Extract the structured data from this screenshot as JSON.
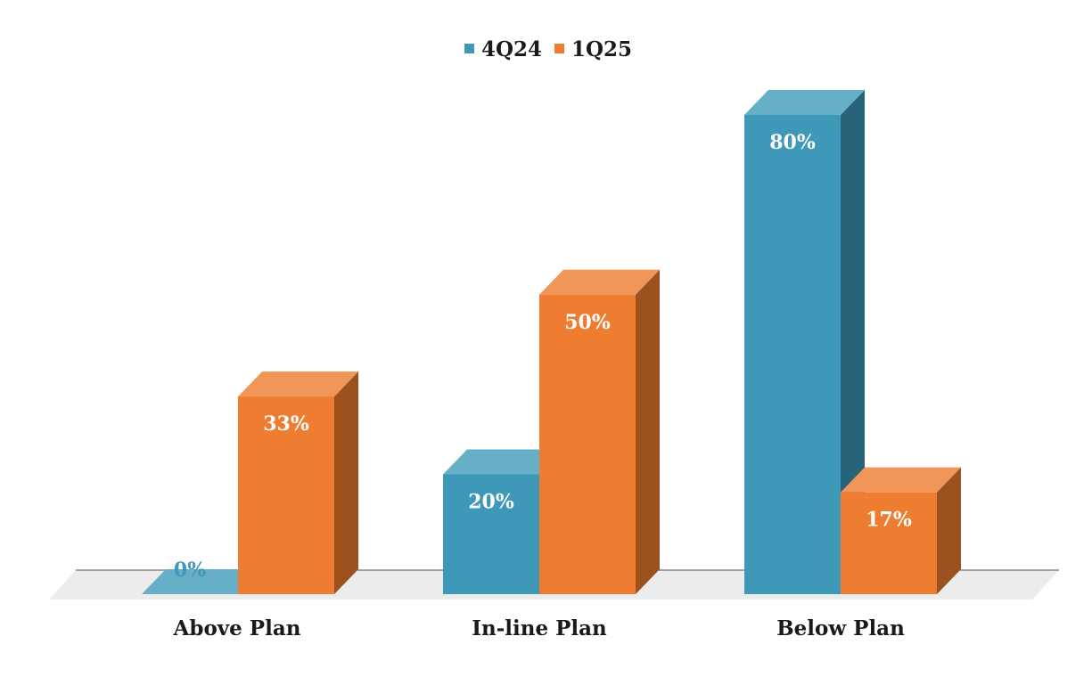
{
  "chart_data": {
    "type": "bar",
    "style": "3d-clustered-column",
    "categories": [
      "Above Plan",
      "In-line Plan",
      "Below Plan"
    ],
    "series": [
      {
        "name": "4Q24",
        "values": [
          0,
          20,
          80
        ],
        "labels": [
          "0%",
          "20%",
          "80%"
        ],
        "color": "#3e98b8",
        "top_color": "#66afc7",
        "side_color": "#276379"
      },
      {
        "name": "1Q25",
        "values": [
          33,
          50,
          17
        ],
        "labels": [
          "33%",
          "50%",
          "17%"
        ],
        "color": "#ee7d31",
        "top_color": "#f19659",
        "side_color": "#9b521f"
      }
    ],
    "unit": "%",
    "ylim": [
      0,
      80
    ],
    "legend_position": "top-center",
    "grid": false,
    "floor_color": "#ececec",
    "label_color_zero": "#3e98b8",
    "label_color_inside": "#ffffff"
  }
}
